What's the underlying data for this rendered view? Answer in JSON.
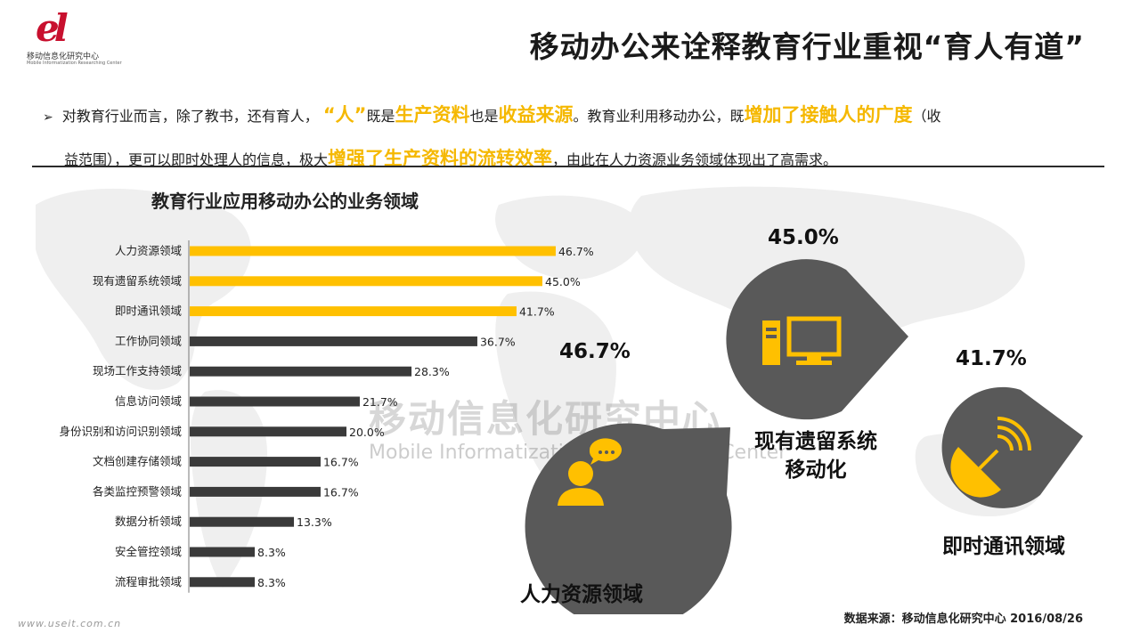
{
  "logo": {
    "mark": "el",
    "name_cn": "移动信息化研究中心",
    "name_en": "Mobile Informatization Researching Center"
  },
  "page_title": "移动办公来诠释教育行业重视“育人有道”",
  "intro": {
    "bullet": "➢",
    "t1": "对教育行业而言，除了教书，还有育人，",
    "h1": "“人”",
    "t2": "既是",
    "h2": "生产资料",
    "t3": "也是",
    "h3": "收益来源",
    "t4": "。教育业利用移动办公，既",
    "h4": "增加了接触人的广度",
    "t5": "（收",
    "t6": "益范围），更可以即时处理人的信息，极大",
    "h5": "增强了生产资料的流转效率",
    "t7": "，由此在人力资源业务领域体现出了高需求。"
  },
  "watermark": {
    "cn": "移动信息化研究中心",
    "en": "Mobile  Informatization  Researching  Center"
  },
  "chart_data": {
    "type": "bar",
    "orientation": "horizontal",
    "title": "教育行业应用移动办公的业务领域",
    "categories": [
      "人力资源领域",
      "现有遗留系统领域",
      "即时通讯领域",
      "工作协同领域",
      "现场工作支持领域",
      "信息访问领域",
      "身份识别和访问识别领域",
      "文档创建存储领域",
      "各类监控预警领域",
      "数据分析领域",
      "安全管控领域",
      "流程审批领域"
    ],
    "values": [
      46.7,
      45.0,
      41.7,
      36.7,
      28.3,
      21.7,
      20.0,
      16.7,
      16.7,
      13.3,
      8.3,
      8.3
    ],
    "value_labels": [
      "46.7%",
      "45.0%",
      "41.7%",
      "36.7%",
      "28.3%",
      "21.7%",
      "20.0%",
      "16.7%",
      "16.7%",
      "13.3%",
      "8.3%",
      "8.3%"
    ],
    "highlight_count": 3,
    "colors": {
      "highlight": "#ffc000",
      "normal": "#3a3a3a"
    },
    "xlim": [
      0,
      50
    ],
    "grid": false,
    "legend": "none"
  },
  "highlights": [
    {
      "pct": "46.7%",
      "caption": "人力资源领域",
      "icon": "person-chat-icon"
    },
    {
      "pct": "45.0%",
      "caption_line1": "现有遗留系统",
      "caption_line2": "移动化",
      "icon": "computer-icon"
    },
    {
      "pct": "41.7%",
      "caption": "即时通讯领域",
      "icon": "satellite-dish-icon"
    }
  ],
  "drop_color": "#595959",
  "icon_color": "#ffc000",
  "source": "数据来源：移动信息化研究中心 2016/08/26",
  "site": "www.useit.com.cn"
}
